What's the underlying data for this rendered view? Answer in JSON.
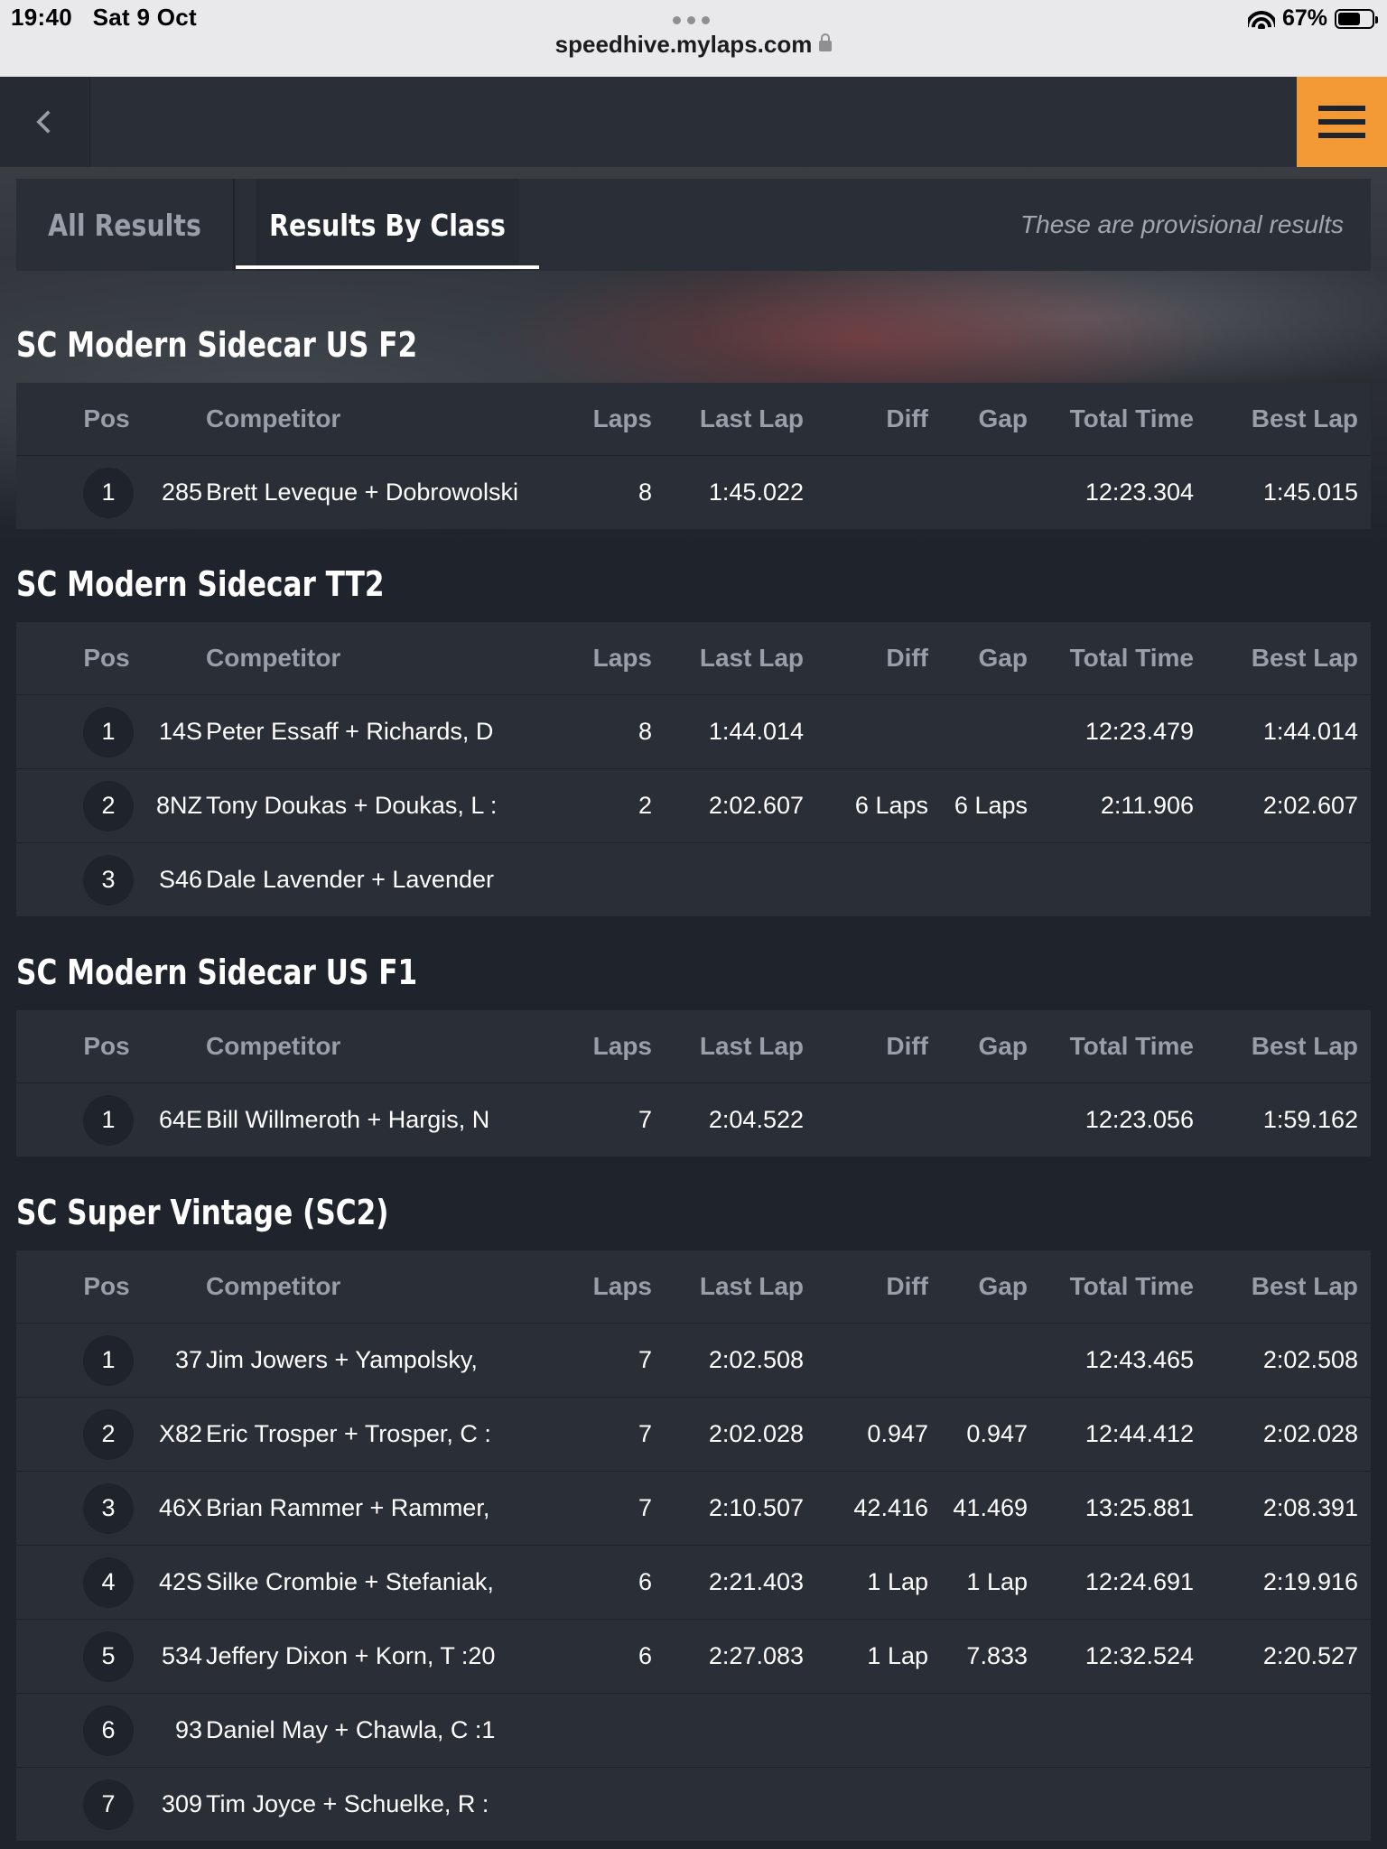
{
  "status_bar": {
    "time": "19:40",
    "date": "Sat 9 Oct",
    "url": "speedhive.mylaps.com",
    "battery": "67%"
  },
  "tabs": {
    "all_results": "All Results",
    "results_by_class": "Results By Class",
    "provisional_note": "These are provisional results"
  },
  "columns": {
    "pos": "Pos",
    "competitor": "Competitor",
    "laps": "Laps",
    "last_lap": "Last Lap",
    "diff": "Diff",
    "gap": "Gap",
    "total_time": "Total Time",
    "best_lap": "Best Lap"
  },
  "classes": [
    {
      "title": "SC Modern Sidecar US F2",
      "rows": [
        {
          "pos": "1",
          "num": "285",
          "competitor": "Brett Leveque + Dobrowolski",
          "laps": "8",
          "last_lap": "1:45.022",
          "diff": "",
          "gap": "",
          "total_time": "12:23.304",
          "best_lap": "1:45.015"
        }
      ]
    },
    {
      "title": "SC Modern Sidecar TT2",
      "rows": [
        {
          "pos": "1",
          "num": "14S",
          "competitor": "Peter Essaff + Richards, D",
          "laps": "8",
          "last_lap": "1:44.014",
          "diff": "",
          "gap": "",
          "total_time": "12:23.479",
          "best_lap": "1:44.014"
        },
        {
          "pos": "2",
          "num": "8NZ",
          "competitor": "Tony Doukas + Doukas, L :",
          "laps": "2",
          "last_lap": "2:02.607",
          "diff": "6 Laps",
          "gap": "6 Laps",
          "total_time": "2:11.906",
          "best_lap": "2:02.607"
        },
        {
          "pos": "3",
          "num": "S46",
          "competitor": "Dale Lavender + Lavender",
          "laps": "",
          "last_lap": "",
          "diff": "",
          "gap": "",
          "total_time": "",
          "best_lap": ""
        }
      ]
    },
    {
      "title": "SC Modern Sidecar US F1",
      "rows": [
        {
          "pos": "1",
          "num": "64E",
          "competitor": "Bill Willmeroth + Hargis, N",
          "laps": "7",
          "last_lap": "2:04.522",
          "diff": "",
          "gap": "",
          "total_time": "12:23.056",
          "best_lap": "1:59.162"
        }
      ]
    },
    {
      "title": "SC Super Vintage (SC2)",
      "rows": [
        {
          "pos": "1",
          "num": "37",
          "competitor": "Jim Jowers + Yampolsky,",
          "laps": "7",
          "last_lap": "2:02.508",
          "diff": "",
          "gap": "",
          "total_time": "12:43.465",
          "best_lap": "2:02.508"
        },
        {
          "pos": "2",
          "num": "X82",
          "competitor": "Eric Trosper + Trosper, C :",
          "laps": "7",
          "last_lap": "2:02.028",
          "diff": "0.947",
          "gap": "0.947",
          "total_time": "12:44.412",
          "best_lap": "2:02.028"
        },
        {
          "pos": "3",
          "num": "46X",
          "competitor": "Brian Rammer + Rammer,",
          "laps": "7",
          "last_lap": "2:10.507",
          "diff": "42.416",
          "gap": "41.469",
          "total_time": "13:25.881",
          "best_lap": "2:08.391"
        },
        {
          "pos": "4",
          "num": "42S",
          "competitor": "Silke Crombie + Stefaniak,",
          "laps": "6",
          "last_lap": "2:21.403",
          "diff": "1 Lap",
          "gap": "1 Lap",
          "total_time": "12:24.691",
          "best_lap": "2:19.916"
        },
        {
          "pos": "5",
          "num": "534",
          "competitor": "Jeffery Dixon + Korn, T :20",
          "laps": "6",
          "last_lap": "2:27.083",
          "diff": "1 Lap",
          "gap": "7.833",
          "total_time": "12:32.524",
          "best_lap": "2:20.527"
        },
        {
          "pos": "6",
          "num": "93",
          "competitor": "Daniel May + Chawla, C :1",
          "laps": "",
          "last_lap": "",
          "diff": "",
          "gap": "",
          "total_time": "",
          "best_lap": ""
        },
        {
          "pos": "7",
          "num": "309",
          "competitor": "Tim Joyce + Schuelke, R :",
          "laps": "",
          "last_lap": "",
          "diff": "",
          "gap": "",
          "total_time": "",
          "best_lap": ""
        }
      ]
    }
  ]
}
